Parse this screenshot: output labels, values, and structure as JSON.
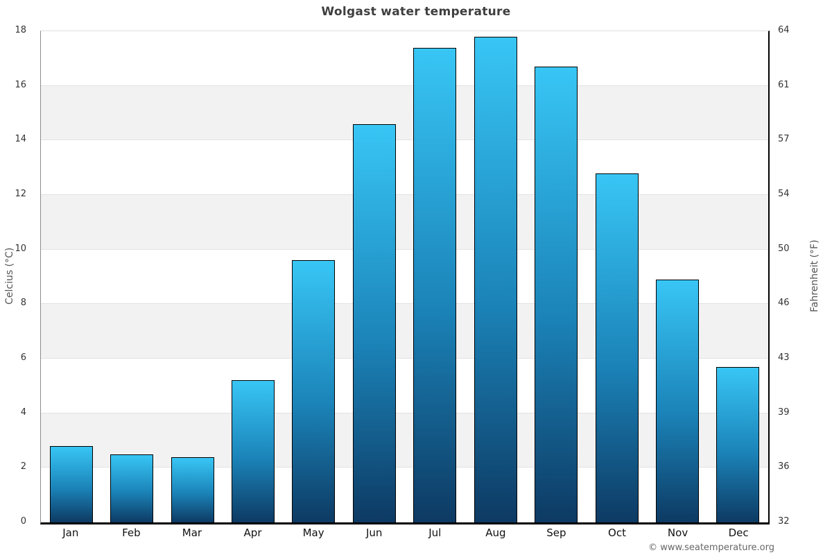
{
  "title": "Wolgast water temperature",
  "footer": "© www.seatemperature.org",
  "chart_data": {
    "type": "bar",
    "title": "Wolgast water temperature",
    "categories": [
      "Jan",
      "Feb",
      "Mar",
      "Apr",
      "May",
      "Jun",
      "Jul",
      "Aug",
      "Sep",
      "Oct",
      "Nov",
      "Dec"
    ],
    "values": [
      2.8,
      2.5,
      2.4,
      5.2,
      9.6,
      14.6,
      17.4,
      17.8,
      16.7,
      12.8,
      8.9,
      5.7
    ],
    "value_unit": "°C",
    "ylabel_left": "Celcius (°C)",
    "ylabel_right": "Fahrenheit (°F)",
    "ylim_left": [
      0,
      18
    ],
    "left_ticks": [
      0,
      2,
      4,
      6,
      8,
      10,
      12,
      14,
      16,
      18
    ],
    "right_ticks": [
      32,
      36,
      39,
      43,
      46,
      50,
      54,
      57,
      61,
      64
    ],
    "legend": "none",
    "grid": "horizontal alternating bands",
    "colors": {
      "bar_top": "#38c6f5",
      "bar_mid": "#1b83b8",
      "bar_bottom": "#0d3a63",
      "bar_border": "#000000",
      "band": "#f2f2f2",
      "gridline": "#e2e2e2",
      "title_text": "#3f3f3f",
      "tick_text": "#333333",
      "axis_text": "#555555",
      "footer_text": "#666666"
    }
  }
}
